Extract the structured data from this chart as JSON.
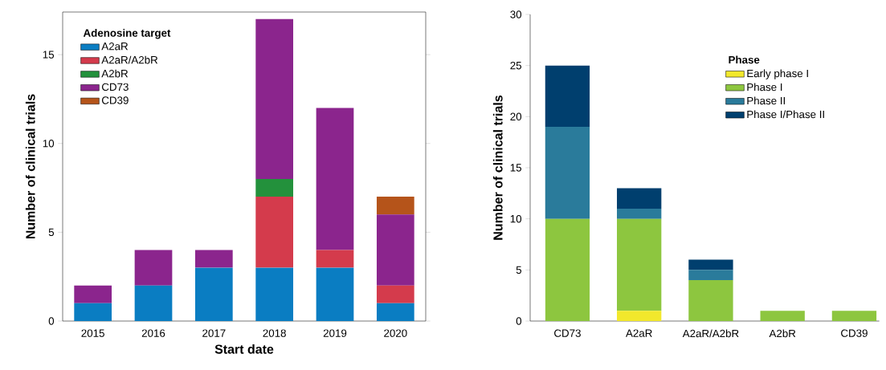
{
  "chart_data": [
    {
      "type": "bar",
      "stacked": true,
      "xlabel": "Start date",
      "ylabel": "Number of clinical trials",
      "legend_title": "Adenosine target",
      "legend": "top left",
      "categories": [
        "2015",
        "2016",
        "2017",
        "2018",
        "2019",
        "2020"
      ],
      "ylim": [
        0,
        17.4
      ],
      "yticks": [
        0,
        5,
        10,
        15
      ],
      "series": [
        {
          "name": "A2aR",
          "color": "#0a7dc2",
          "values": [
            1,
            2,
            3,
            3,
            3,
            1
          ]
        },
        {
          "name": "A2aR/A2bR",
          "color": "#d43b4c",
          "values": [
            0,
            0,
            0,
            4,
            1,
            1
          ]
        },
        {
          "name": "A2bR",
          "color": "#23913c",
          "values": [
            0,
            0,
            0,
            1,
            0,
            0
          ]
        },
        {
          "name": "CD73",
          "color": "#8b258d",
          "values": [
            1,
            2,
            1,
            9,
            8,
            4
          ]
        },
        {
          "name": "CD39",
          "color": "#b5541a",
          "values": [
            0,
            0,
            0,
            0,
            0,
            1
          ]
        }
      ]
    },
    {
      "type": "bar",
      "stacked": true,
      "ylabel": "Number of clinical trials",
      "legend_title": "Phase",
      "legend": "top right",
      "categories": [
        "CD73",
        "A2aR",
        "A2aR/A2bR",
        "A2bR",
        "CD39"
      ],
      "ylim": [
        0,
        30
      ],
      "yticks": [
        0,
        5,
        10,
        15,
        20,
        25,
        30
      ],
      "series": [
        {
          "name": "Early phase I",
          "color": "#f2e82c",
          "values": [
            0,
            1,
            0,
            0,
            0
          ]
        },
        {
          "name": "Phase I",
          "color": "#8dc63f",
          "values": [
            10,
            9,
            4,
            1,
            1
          ]
        },
        {
          "name": "Phase II",
          "color": "#2a7b9b",
          "values": [
            9,
            1,
            1,
            0,
            0
          ]
        },
        {
          "name": "Phase I/Phase II",
          "color": "#003f6e",
          "values": [
            6,
            2,
            1,
            0,
            0
          ]
        }
      ]
    }
  ]
}
